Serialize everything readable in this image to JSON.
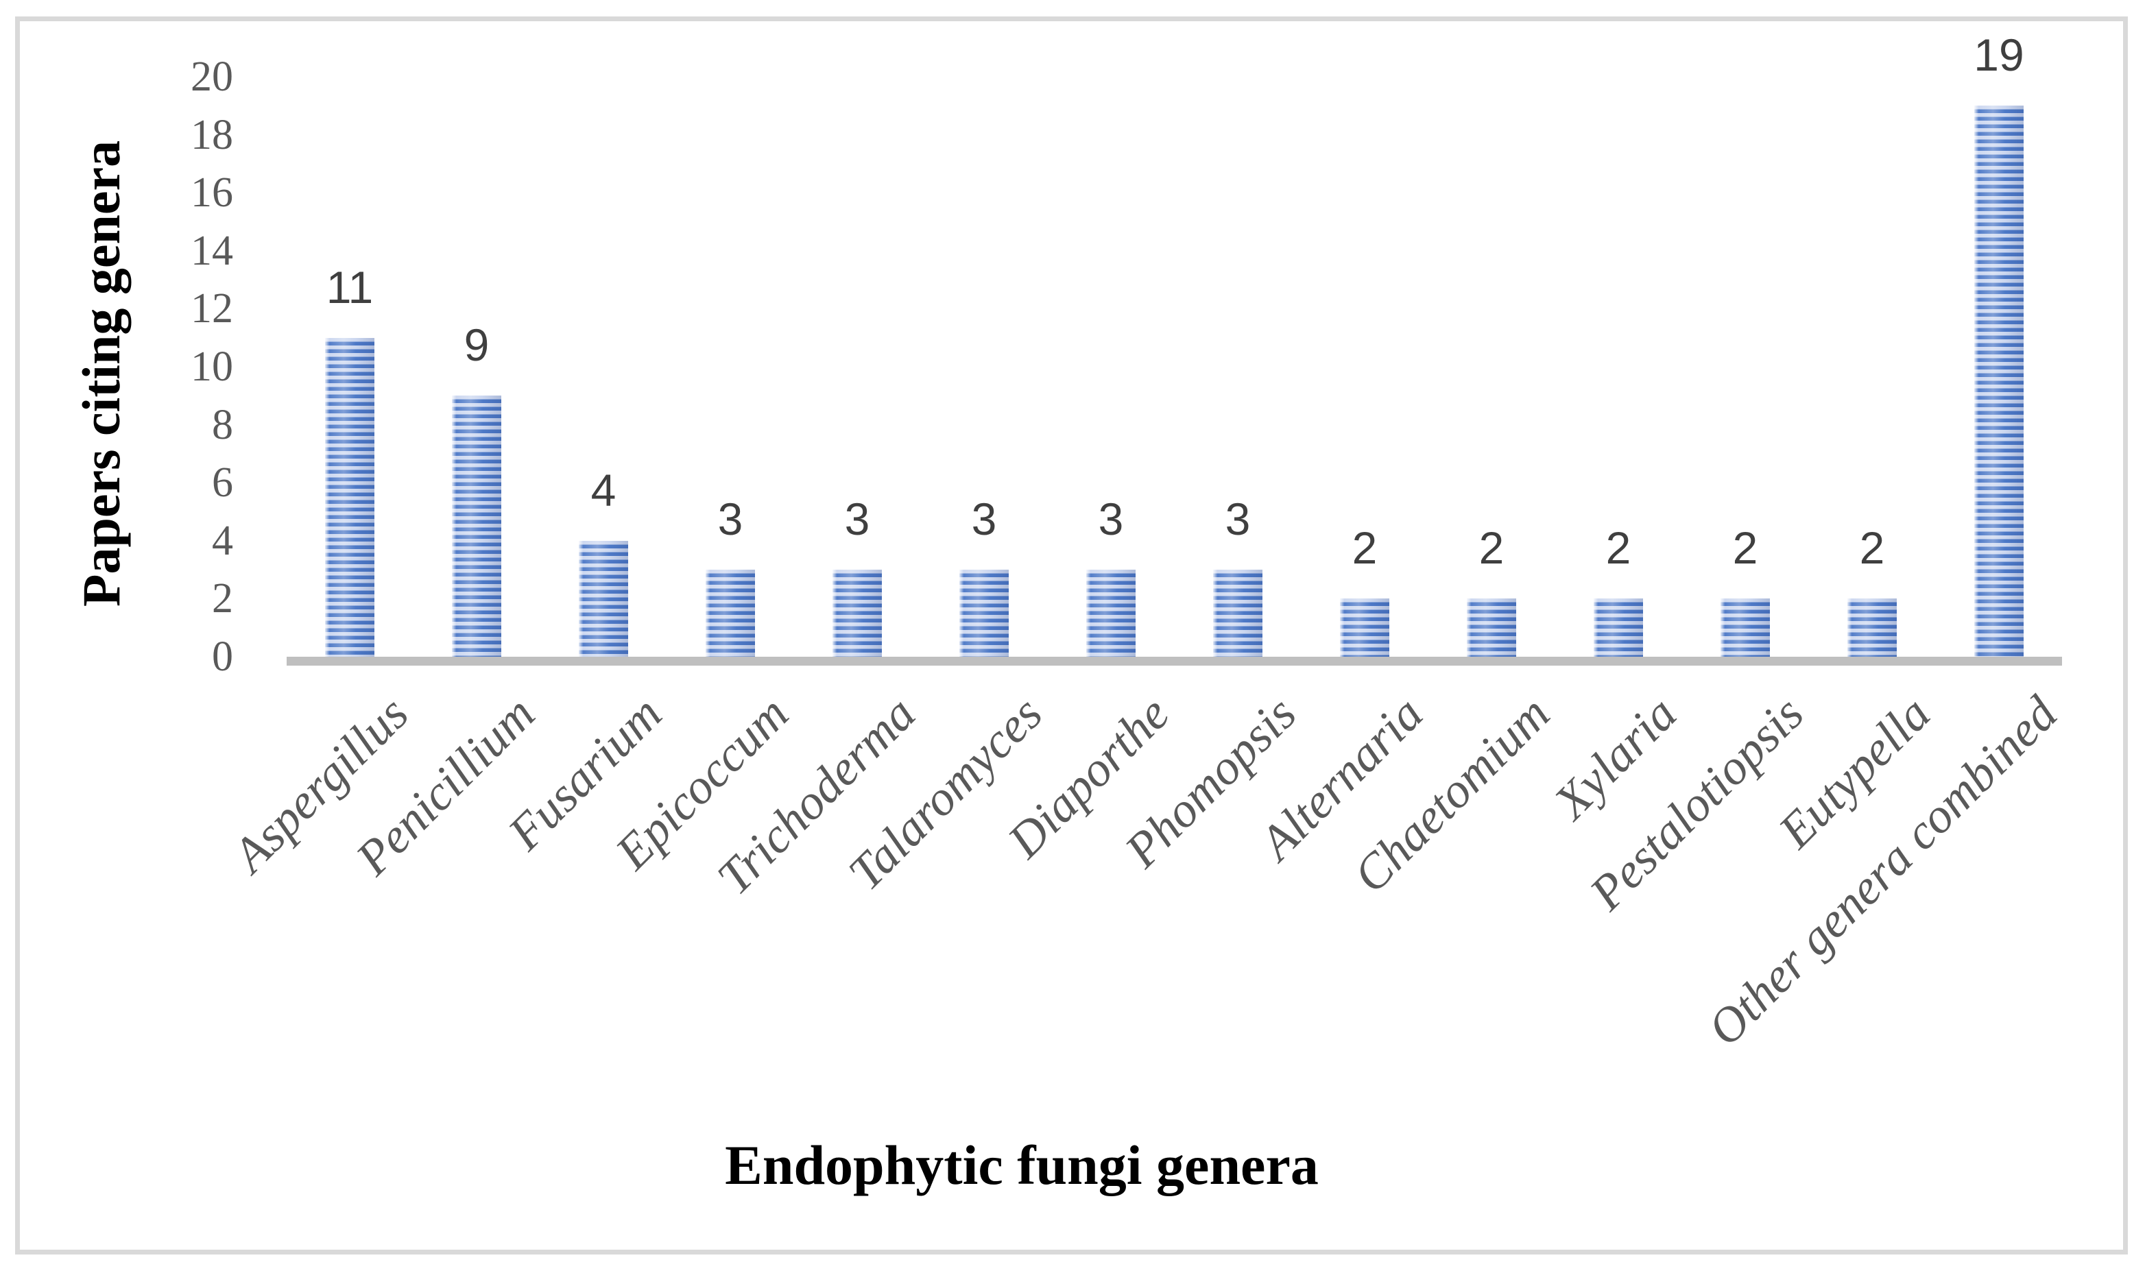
{
  "figure": {
    "y_axis_title": "Papers citing genera",
    "x_axis_title": "Endophytic fungi genera"
  },
  "chart_data": {
    "type": "bar",
    "title": "",
    "categories": [
      "Aspergillus",
      "Penicillium",
      "Fusarium",
      "Epicoccum",
      "Trichoderma",
      "Talaromyces",
      "Diaporthe",
      "Phomopsis",
      "Alternaria",
      "Chaetomium",
      "Xylaria",
      "Pestalotiopsis",
      "Eutypella",
      "Other genera combined"
    ],
    "values": [
      11,
      9,
      4,
      3,
      3,
      3,
      3,
      3,
      2,
      2,
      2,
      2,
      2,
      19
    ],
    "data_labels": [
      "11",
      "9",
      "4",
      "3",
      "3",
      "3",
      "3",
      "3",
      "2",
      "2",
      "2",
      "2",
      "2",
      "19"
    ],
    "xlabel": "Endophytic fungi genera",
    "ylabel": "Papers citing genera",
    "ylim": [
      0,
      20
    ],
    "ytick_interval": 2,
    "ytick_labels": [
      "0",
      "2",
      "4",
      "6",
      "8",
      "10",
      "12",
      "14",
      "16",
      "18",
      "20"
    ],
    "grid": false,
    "legend": "none",
    "bar_pattern": "horizontal-stripes",
    "colors": {
      "bar_stripe_dark": "#4472c4",
      "bar_stripe_light": "#c9d5ef",
      "axis_line": "#bfbfbf",
      "tick_label": "#595959",
      "data_label": "#3f3f3f",
      "axis_title": "#000000",
      "frame_border": "#d9d9d9",
      "background": "#ffffff"
    }
  }
}
